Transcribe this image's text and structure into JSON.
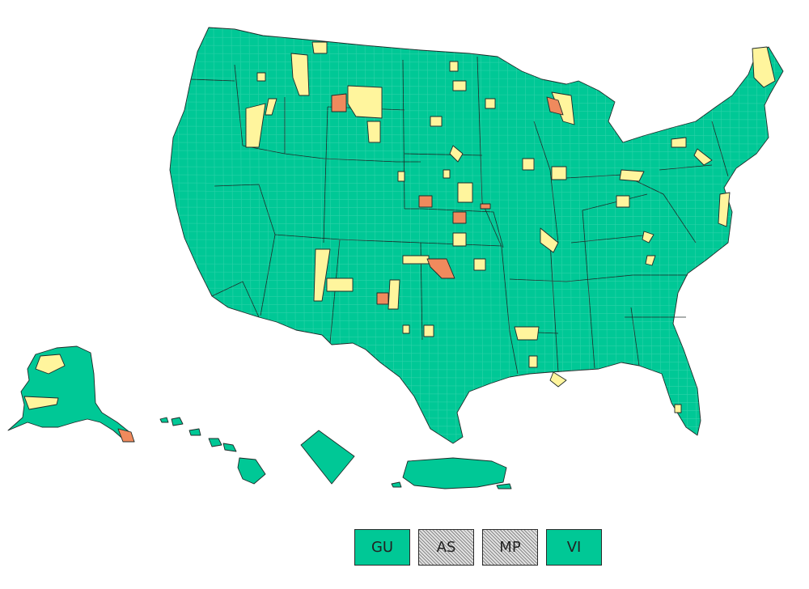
{
  "legend_colors": {
    "low": "#00c896",
    "medium": "#fff59d",
    "high": "#f08a5d",
    "no_data_pattern": "hatched-gray"
  },
  "territories": [
    {
      "code": "GU",
      "level": "low"
    },
    {
      "code": "AS",
      "level": "no_data"
    },
    {
      "code": "MP",
      "level": "no_data"
    },
    {
      "code": "VI",
      "level": "low"
    }
  ]
}
